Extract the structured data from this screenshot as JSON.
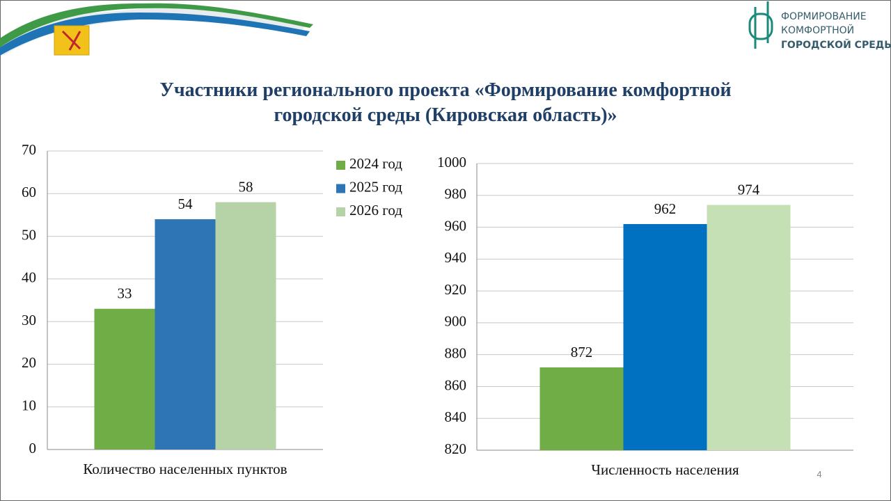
{
  "header": {
    "title_lines": [
      "Участники регионального проекта «Формирование комфортной",
      "городской среды (Кировская область)»"
    ],
    "logo_lines": [
      "ФОРМИРОВАНИЕ",
      "КОМФОРТНОЙ",
      "ГОРОДСКОЙ СРЕДЫ"
    ]
  },
  "page_number": "4",
  "chart_data": [
    {
      "type": "bar",
      "categories": [
        "Количество населенных пунктов"
      ],
      "series": [
        {
          "name": "2024 год",
          "color": "#70ad47",
          "values": [
            33
          ]
        },
        {
          "name": "2025 год",
          "color": "#2e75b6",
          "values": [
            54
          ]
        },
        {
          "name": "2026 год",
          "color": "#b5d3a7",
          "values": [
            58
          ]
        }
      ],
      "ylim": [
        0,
        70
      ],
      "yticks": [
        0,
        10,
        20,
        30,
        40,
        50,
        60,
        70
      ],
      "grid": true,
      "legend": "right"
    },
    {
      "type": "bar",
      "categories": [
        "Численность населения"
      ],
      "series": [
        {
          "color": "#70ad47",
          "values": [
            872
          ]
        },
        {
          "color": "#0070c0",
          "values": [
            962
          ]
        },
        {
          "color": "#c5e0b4",
          "values": [
            974
          ]
        }
      ],
      "ylim": [
        820,
        1000
      ],
      "yticks": [
        820,
        840,
        860,
        880,
        900,
        920,
        940,
        960,
        980,
        1000
      ],
      "grid": true
    }
  ]
}
